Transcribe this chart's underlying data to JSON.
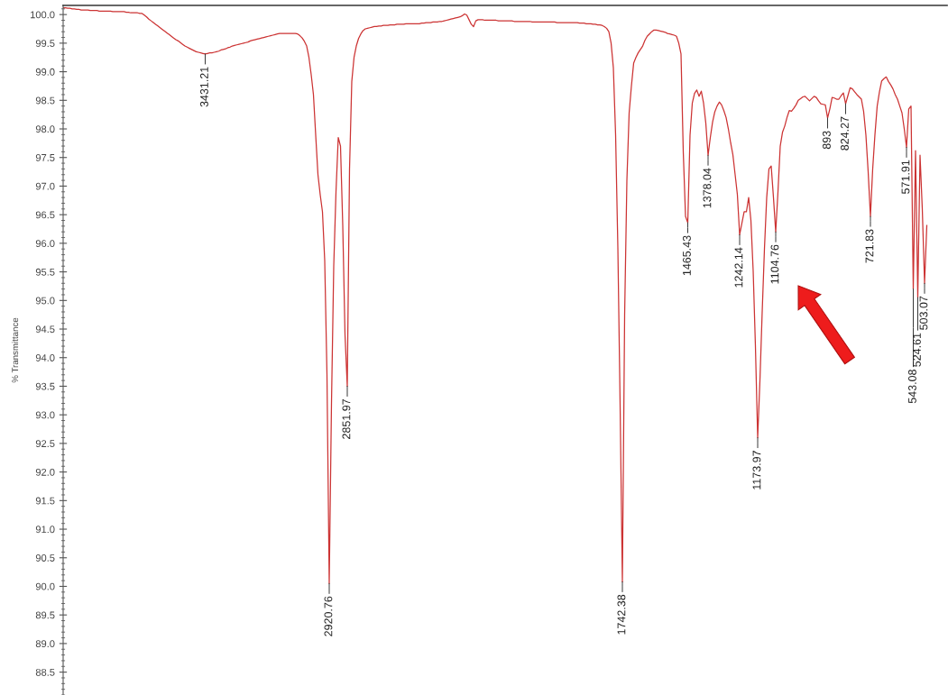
{
  "chart_data": {
    "type": "line",
    "ylabel": "% Transmittance",
    "categories": [
      null,
      null,
      null,
      null,
      null,
      null,
      null,
      null,
      null,
      null,
      null,
      null,
      null,
      null,
      null,
      null,
      null,
      null,
      null,
      null,
      null,
      null,
      null,
      null,
      null,
      null,
      null,
      null,
      null,
      null,
      null,
      null,
      null,
      null,
      null,
      null,
      null,
      null,
      null,
      null,
      null,
      null,
      null,
      null,
      null,
      null,
      null,
      null,
      null,
      null,
      null,
      null,
      null,
      null,
      null,
      null,
      null,
      null,
      null,
      null,
      null,
      null,
      null,
      null,
      null,
      null,
      null,
      null,
      null,
      null,
      null,
      null,
      null,
      null,
      null,
      null,
      null,
      null,
      null,
      null,
      null,
      null,
      null,
      null,
      null,
      null,
      null,
      null,
      null,
      null,
      null,
      null,
      null,
      null,
      null,
      null,
      null,
      null,
      null,
      null,
      null,
      null,
      null,
      null,
      null,
      null,
      null,
      null,
      null,
      null,
      null,
      null,
      null,
      null,
      null,
      null,
      null,
      null,
      null,
      null,
      null,
      null,
      null,
      null,
      null,
      null,
      null,
      null,
      null,
      null,
      null,
      null,
      null,
      null,
      null,
      null,
      null,
      null,
      null,
      null,
      null,
      null,
      null,
      null,
      null,
      null,
      null,
      null,
      null,
      null,
      null,
      null,
      null,
      null,
      null,
      null,
      null,
      null,
      null,
      null,
      null,
      null,
      null,
      null,
      null,
      null,
      null,
      null,
      null,
      null,
      null,
      null,
      null,
      null,
      null,
      null,
      null,
      null,
      null,
      null,
      null,
      null,
      null,
      null,
      null,
      null,
      null,
      null,
      null,
      null,
      null,
      null,
      null,
      null,
      null,
      null,
      null,
      null,
      null,
      null,
      null,
      null,
      null,
      null,
      null,
      null,
      null,
      null,
      null,
      null,
      null,
      null,
      null,
      null,
      null,
      null,
      null,
      null,
      null,
      null,
      null,
      null,
      null,
      null,
      null,
      null,
      null,
      null,
      null,
      null,
      null,
      null,
      null,
      null,
      null,
      null,
      null,
      null,
      null,
      null,
      null,
      null,
      null,
      null,
      null,
      null,
      null,
      null,
      null,
      null,
      null,
      null,
      null,
      null,
      null,
      null,
      null,
      null,
      null,
      null,
      null,
      null,
      null,
      null,
      null,
      null,
      null,
      null,
      null,
      null,
      null,
      null,
      null,
      null,
      null,
      null,
      null,
      null,
      null,
      null,
      null,
      null,
      null,
      null,
      null,
      null,
      null,
      null,
      null,
      null,
      null,
      null,
      null,
      null,
      null,
      null,
      null,
      null,
      null,
      null,
      null,
      null,
      null,
      null,
      null,
      null,
      null,
      null,
      null,
      null,
      null,
      null,
      null,
      null,
      null,
      null,
      null,
      null,
      null,
      null,
      null,
      null,
      null,
      null,
      null,
      null,
      null,
      null,
      null,
      null,
      null,
      null,
      null,
      null,
      null,
      null,
      null,
      null,
      null,
      null,
      null,
      null,
      null,
      null,
      null,
      null,
      null,
      null,
      null,
      null,
      null,
      null,
      null,
      null,
      null,
      null,
      null,
      null,
      null,
      null,
      null,
      null,
      null,
      null,
      null,
      null,
      null,
      null,
      null,
      null,
      null,
      null,
      null,
      null,
      null,
      null,
      null,
      null,
      null,
      null,
      null,
      null,
      null,
      null,
      null,
      null,
      null,
      null,
      null,
      null,
      null,
      null,
      null
    ],
    "series": [
      {
        "color": "#cc3333",
        "values": [
          100.12,
          100.12,
          100.11,
          100.11,
          100.1,
          100.1,
          100.09,
          100.09,
          100.08,
          100.08,
          100.08,
          100.08,
          100.07,
          100.07,
          100.07,
          100.07,
          100.06,
          100.06,
          100.06,
          100.06,
          100.06,
          100.06,
          100.05,
          100.05,
          100.05,
          100.05,
          100.05,
          100.05,
          100.04,
          100.04,
          100.03,
          100.03,
          100.03,
          100.03,
          100.02,
          100.02,
          99.99,
          99.96,
          99.92,
          99.89,
          99.86,
          99.83,
          99.8,
          99.77,
          99.74,
          99.71,
          99.68,
          99.65,
          99.62,
          99.59,
          99.56,
          99.54,
          99.51,
          99.48,
          99.45,
          99.43,
          99.41,
          99.39,
          99.37,
          99.35,
          99.34,
          99.33,
          99.32,
          99.31,
          99.32,
          99.33,
          99.33,
          99.34,
          99.35,
          99.36,
          99.38,
          99.39,
          99.4,
          99.42,
          99.43,
          99.45,
          99.46,
          99.47,
          99.48,
          99.49,
          99.5,
          99.51,
          99.52,
          99.54,
          99.55,
          99.56,
          99.57,
          99.58,
          99.59,
          99.6,
          99.61,
          99.62,
          99.63,
          99.64,
          99.65,
          99.66,
          99.67,
          99.67,
          99.67,
          99.67,
          99.67,
          99.67,
          99.67,
          99.67,
          99.66,
          99.63,
          99.59,
          99.53,
          99.45,
          99.25,
          98.95,
          98.6,
          97.89,
          97.2,
          96.85,
          96.55,
          95.7,
          93.7,
          90.05,
          93.2,
          95.6,
          96.9,
          97.85,
          97.7,
          96.31,
          94.4,
          93.5,
          97.3,
          98.83,
          99.25,
          99.45,
          99.58,
          99.66,
          99.72,
          99.75,
          99.76,
          99.77,
          99.78,
          99.79,
          99.79,
          99.8,
          99.8,
          99.81,
          99.81,
          99.81,
          99.82,
          99.82,
          99.82,
          99.83,
          99.83,
          99.83,
          99.83,
          99.84,
          99.84,
          99.84,
          99.84,
          99.84,
          99.84,
          99.84,
          99.85,
          99.85,
          99.86,
          99.86,
          99.86,
          99.87,
          99.87,
          99.87,
          99.88,
          99.88,
          99.89,
          99.9,
          99.91,
          99.92,
          99.93,
          99.94,
          99.95,
          99.96,
          99.98,
          100.01,
          99.99,
          99.91,
          99.83,
          99.79,
          99.89,
          99.91,
          99.91,
          99.91,
          99.9,
          99.9,
          99.9,
          99.9,
          99.9,
          99.9,
          99.89,
          99.89,
          99.89,
          99.89,
          99.89,
          99.89,
          99.89,
          99.88,
          99.88,
          99.88,
          99.88,
          99.88,
          99.88,
          99.88,
          99.88,
          99.87,
          99.87,
          99.87,
          99.87,
          99.87,
          99.87,
          99.87,
          99.87,
          99.87,
          99.87,
          99.87,
          99.86,
          99.86,
          99.86,
          99.86,
          99.86,
          99.86,
          99.86,
          99.86,
          99.86,
          99.86,
          99.85,
          99.85,
          99.85,
          99.84,
          99.84,
          99.84,
          99.83,
          99.83,
          99.82,
          99.82,
          99.81,
          99.79,
          99.76,
          99.7,
          99.5,
          99.07,
          97.89,
          95.92,
          93.16,
          90.08,
          94.74,
          97.1,
          98.28,
          98.75,
          99.15,
          99.25,
          99.33,
          99.39,
          99.45,
          99.55,
          99.62,
          99.66,
          99.7,
          99.73,
          99.73,
          99.72,
          99.71,
          99.7,
          99.69,
          99.67,
          99.66,
          99.65,
          99.64,
          99.62,
          99.5,
          99.31,
          97.6,
          96.47,
          96.36,
          97.89,
          98.45,
          98.62,
          98.68,
          98.57,
          98.66,
          98.45,
          98.1,
          97.54,
          97.85,
          98.12,
          98.3,
          98.4,
          98.47,
          98.42,
          98.32,
          98.2,
          98.0,
          97.76,
          97.55,
          97.2,
          96.85,
          96.15,
          96.35,
          96.55,
          96.55,
          96.8,
          96.4,
          95.52,
          94.2,
          92.6,
          93.6,
          94.8,
          95.9,
          96.8,
          97.3,
          97.35,
          96.8,
          96.2,
          96.9,
          97.7,
          97.94,
          98.05,
          98.2,
          98.32,
          98.31,
          98.36,
          98.42,
          98.5,
          98.53,
          98.56,
          98.57,
          98.53,
          98.49,
          98.53,
          98.57,
          98.55,
          98.49,
          98.44,
          98.43,
          98.42,
          98.19,
          98.35,
          98.55,
          98.54,
          98.52,
          98.52,
          98.58,
          98.63,
          98.44,
          98.58,
          98.72,
          98.7,
          98.65,
          98.6,
          98.56,
          98.52,
          98.3,
          97.89,
          97.25,
          96.47,
          97.3,
          97.9,
          98.4,
          98.65,
          98.84,
          98.88,
          98.91,
          98.83,
          98.77,
          98.7,
          98.6,
          98.52,
          98.4,
          98.28,
          98.0,
          97.68,
          98.35,
          98.4,
          95.2,
          97.62,
          95.05,
          97.54,
          96.6,
          95.3,
          96.31,
          null,
          null,
          null,
          null,
          null,
          null,
          null,
          null,
          null
        ]
      }
    ],
    "ylim": [
      88.1,
      100.16
    ],
    "yticks": [
      {
        "value": 88.5,
        "label": "88.5"
      },
      {
        "value": 89.0,
        "label": "89.0"
      },
      {
        "value": 89.5,
        "label": "89.5"
      },
      {
        "value": 90.0,
        "label": "90.0"
      },
      {
        "value": 90.5,
        "label": "90.5"
      },
      {
        "value": 91.0,
        "label": "91.0"
      },
      {
        "value": 91.5,
        "label": "91.5"
      },
      {
        "value": 92.0,
        "label": "92.0"
      },
      {
        "value": 92.5,
        "label": "92.5"
      },
      {
        "value": 93.0,
        "label": "93.0"
      },
      {
        "value": 93.5,
        "label": "93.5"
      },
      {
        "value": 94.0,
        "label": "94.0"
      },
      {
        "value": 94.5,
        "label": "94.5"
      },
      {
        "value": 95.0,
        "label": "95.0"
      },
      {
        "value": 95.5,
        "label": "95.5"
      },
      {
        "value": 96.0,
        "label": "96.0"
      },
      {
        "value": 96.5,
        "label": "96.5"
      },
      {
        "value": 97.0,
        "label": "97.0"
      },
      {
        "value": 97.5,
        "label": "97.5"
      },
      {
        "value": 98.0,
        "label": "98.0"
      },
      {
        "value": 98.5,
        "label": "98.5"
      },
      {
        "value": 99.0,
        "label": "99.0"
      },
      {
        "value": 99.5,
        "label": "99.5"
      },
      {
        "value": 100.0,
        "label": "100.0"
      }
    ],
    "annotations": [
      {
        "text": "3431.21",
        "y": 99.31
      },
      {
        "text": "2920.76",
        "y": 90.05
      },
      {
        "text": "2851.97",
        "y": 93.5
      },
      {
        "text": "1742.38",
        "y": 90.08
      },
      {
        "text": "1465.43",
        "y": 96.36
      },
      {
        "text": "1378.04",
        "y": 97.54
      },
      {
        "text": "1242.14",
        "y": 96.15
      },
      {
        "text": "1173.97",
        "y": 92.6
      },
      {
        "text": "1104.76",
        "y": 96.2
      },
      {
        "text": "893",
        "y": 98.19
      },
      {
        "text": "824.27",
        "y": 98.44
      },
      {
        "text": "721.83",
        "y": 96.47
      },
      {
        "text": "571.91",
        "y": 97.68
      },
      {
        "text": "543.08",
        "y": 95.2
      },
      {
        "text": "524.61",
        "y": 95.05
      },
      {
        "text": "503.07",
        "y": 95.3
      }
    ],
    "tick_labels": "y",
    "grid": false,
    "marker": "none",
    "line_style": "solid"
  }
}
